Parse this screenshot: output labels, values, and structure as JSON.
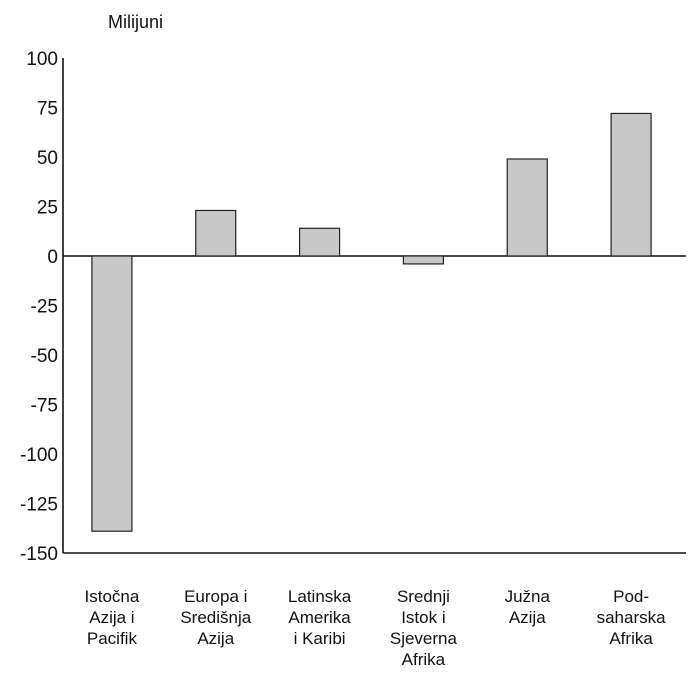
{
  "chart_data": {
    "type": "bar",
    "title": "",
    "xlabel": "",
    "ylabel": "Milijuni",
    "ylim": [
      -150,
      100
    ],
    "yticks": [
      100,
      75,
      50,
      25,
      0,
      -25,
      -50,
      -75,
      -100,
      -125,
      -150
    ],
    "grid": false,
    "categories": [
      [
        "Istočna",
        "Azija i",
        "Pacifik"
      ],
      [
        "Europa i",
        "Središnja",
        "Azija"
      ],
      [
        "Latinska",
        "Amerika",
        "i Karibi"
      ],
      [
        "Srednji",
        "Istok i",
        "Sjeverna",
        "Afrika"
      ],
      [
        "Južna",
        "Azija"
      ],
      [
        "Pod-",
        "saharska",
        "Afrika"
      ]
    ],
    "values": [
      -139,
      23,
      14,
      -4,
      49,
      72
    ],
    "colors": {
      "bar_fill": "#c8c8c8",
      "bar_stroke": "#222222",
      "axis": "#111111"
    }
  }
}
